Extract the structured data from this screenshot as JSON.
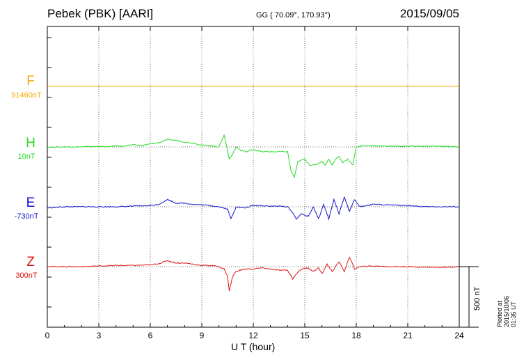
{
  "header": {
    "station": "Pebek (PBK)  [AARI]",
    "coords": "GG ( 70.09°, 170.93°)",
    "date": "2015/09/05"
  },
  "plotted_note": "Plotted at 2015/10/06 01:35 UT",
  "scale_bar": {
    "label": "500 nT",
    "value_nT": 500
  },
  "colors": {
    "F": "#f5a800",
    "H": "#22dd22",
    "E": "#1010cc",
    "Z": "#dd1111"
  },
  "chart_data": {
    "type": "line",
    "xlabel": "U T (hour)",
    "xlim": [
      0,
      24
    ],
    "xticks": [
      0,
      3,
      6,
      9,
      12,
      15,
      18,
      21,
      24
    ],
    "channels": [
      {
        "name": "F",
        "baseline": "91460nT",
        "color": "#f5a800",
        "x": [
          0,
          24
        ],
        "y": [
          0,
          0
        ]
      },
      {
        "name": "H",
        "baseline": "10nT",
        "color": "#22dd22",
        "x": [
          0,
          1,
          2,
          3,
          3.5,
          4,
          4.5,
          5,
          5.5,
          6,
          6.5,
          7,
          7.5,
          8,
          8.5,
          9,
          9.5,
          10,
          10.3,
          10.5,
          10.6,
          10.8,
          11,
          11.3,
          11.6,
          12,
          12.5,
          13,
          13.5,
          14,
          14.2,
          14.4,
          14.6,
          15,
          15.3,
          15.6,
          16,
          16.2,
          16.4,
          16.6,
          16.8,
          17,
          17.2,
          17.5,
          17.8,
          18,
          18.5,
          19,
          20,
          21,
          22,
          23,
          24
        ],
        "y": [
          -5,
          0,
          0,
          5,
          0,
          10,
          5,
          20,
          10,
          25,
          35,
          60,
          55,
          40,
          30,
          15,
          10,
          0,
          100,
          -30,
          -100,
          -60,
          0,
          -30,
          -40,
          -20,
          -40,
          -40,
          -40,
          -40,
          -200,
          -250,
          -120,
          -100,
          -150,
          -150,
          -120,
          -150,
          -100,
          -150,
          -100,
          -80,
          -130,
          -100,
          -150,
          0,
          10,
          10,
          5,
          5,
          5,
          5,
          0
        ]
      },
      {
        "name": "E",
        "baseline": "-730nT",
        "color": "#1010cc",
        "x": [
          0,
          1,
          2,
          3,
          4,
          5,
          6,
          6.5,
          7,
          7.5,
          8,
          8.5,
          9,
          9.5,
          10,
          10.3,
          10.5,
          10.7,
          11,
          11.5,
          12,
          12.5,
          13,
          13.5,
          14,
          14.3,
          14.5,
          14.8,
          15.2,
          15.5,
          15.8,
          16.1,
          16.4,
          16.7,
          17,
          17.3,
          17.6,
          17.9,
          18.2,
          19,
          20,
          21,
          22,
          23,
          24
        ],
        "y": [
          -10,
          0,
          0,
          0,
          0,
          5,
          10,
          20,
          60,
          30,
          30,
          20,
          15,
          10,
          0,
          -10,
          -20,
          -100,
          0,
          -10,
          10,
          10,
          5,
          5,
          0,
          -50,
          -100,
          -60,
          -80,
          0,
          -100,
          20,
          -100,
          60,
          -60,
          80,
          -40,
          60,
          0,
          20,
          15,
          10,
          0,
          0,
          0
        ]
      },
      {
        "name": "Z",
        "baseline": "300nT",
        "color": "#dd1111",
        "x": [
          0,
          1,
          2,
          3,
          4,
          5,
          6,
          6.5,
          7,
          7.5,
          8,
          8.5,
          9,
          9.5,
          10,
          10.3,
          10.5,
          10.6,
          10.8,
          11,
          11.5,
          12,
          12.5,
          13,
          13.5,
          14,
          14.3,
          14.5,
          14.8,
          15.2,
          15.5,
          15.8,
          16,
          16.3,
          16.6,
          17,
          17.3,
          17.6,
          17.9,
          18.2,
          19,
          20,
          21,
          22,
          23,
          24
        ],
        "y": [
          0,
          0,
          0,
          5,
          10,
          10,
          15,
          25,
          50,
          30,
          30,
          20,
          10,
          10,
          0,
          -20,
          -80,
          -200,
          -80,
          -40,
          -20,
          -20,
          -10,
          -20,
          -30,
          -30,
          -100,
          -60,
          -20,
          -10,
          -40,
          -10,
          -60,
          20,
          -40,
          40,
          -40,
          80,
          -20,
          0,
          5,
          0,
          0,
          -5,
          -5,
          0
        ]
      }
    ]
  }
}
